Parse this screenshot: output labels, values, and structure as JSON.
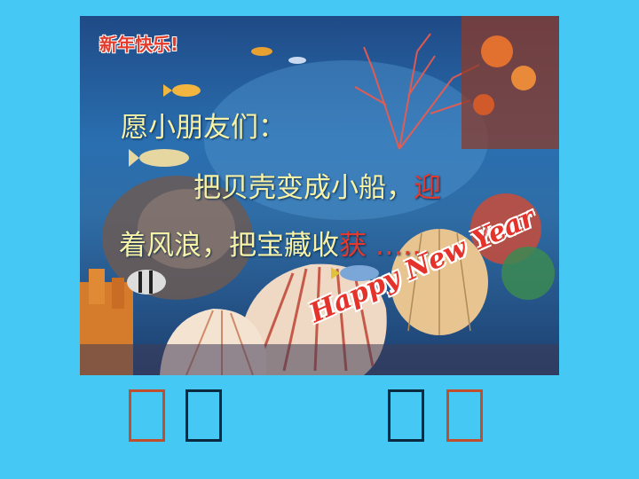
{
  "card": {
    "title": "新年快乐!",
    "line1": "愿小朋友们：",
    "line2_main": "把贝壳变成小船，",
    "line2_red": "迎",
    "line3_main": "着风浪，把宝藏收",
    "line3_red": "获",
    "line3_tail": "……",
    "greeting": "Happy New Year"
  },
  "colors": {
    "page_background": "#45c8f3",
    "poem_text": "#f7f2a6",
    "highlight": "#e23a2e",
    "box_orange": "#c0502d",
    "box_dark": "#0b2a40"
  },
  "answer_boxes": [
    "empty",
    "empty",
    "empty",
    "empty"
  ]
}
